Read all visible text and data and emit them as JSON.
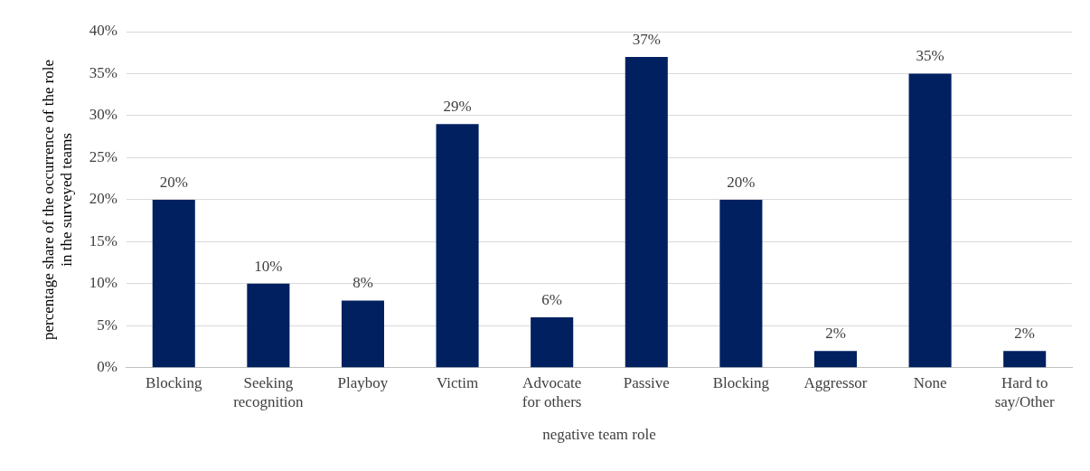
{
  "chart_data": {
    "type": "bar",
    "xlabel": "negative team role",
    "ylabel": "percentage share of the occurrence of the role in the surveyed teams",
    "categories": [
      "Blocking",
      "Seeking recognition",
      "Playboy",
      "Victim",
      "Advocate for others",
      "Passive",
      "Blocking",
      "Aggressor",
      "None",
      "Hard to say/Other"
    ],
    "values": [
      20,
      10,
      8,
      29,
      6,
      37,
      20,
      2,
      35,
      2
    ],
    "color": "#002060",
    "ylim": [
      0,
      40
    ],
    "yticks": [
      {
        "value": 0,
        "label": "0%"
      },
      {
        "value": 5,
        "label": "5%"
      },
      {
        "value": 10,
        "label": "10%"
      },
      {
        "value": 15,
        "label": "15%"
      },
      {
        "value": 20,
        "label": "20%"
      },
      {
        "value": 25,
        "label": "25%"
      },
      {
        "value": 30,
        "label": "30%"
      },
      {
        "value": 35,
        "label": "35%"
      },
      {
        "value": 40,
        "label": "40%"
      }
    ],
    "value_labels": [
      "20%",
      "10%",
      "8%",
      "29%",
      "6%",
      "37%",
      "20%",
      "2%",
      "35%",
      "2%"
    ],
    "grid": "y",
    "legend": false
  }
}
